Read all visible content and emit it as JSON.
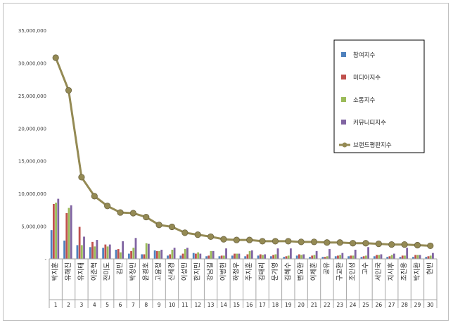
{
  "chart_data": {
    "type": "bar",
    "title": "",
    "xlabel": "",
    "ylabel": "",
    "ylim": [
      0,
      35000000
    ],
    "yticks": [
      0,
      5000000,
      10000000,
      15000000,
      20000000,
      25000000,
      30000000,
      35000000
    ],
    "ytick_labels": [
      "-",
      "5,000,000",
      "10,000,000",
      "15,000,000",
      "20,000,000",
      "25,000,000",
      "30,000,000",
      "35,000,000"
    ],
    "grid": false,
    "legend_position": "top-right",
    "categories": [
      "박지훈",
      "유해진",
      "유지태",
      "이준혁",
      "전미도",
      "김민",
      "박정민",
      "윤경호",
      "고윤정",
      "신세경",
      "이성민",
      "한지민",
      "강남길",
      "이병헌",
      "하정우",
      "주지훈",
      "김태리",
      "문가영",
      "김혜수",
      "변요한",
      "이제훈",
      "공유",
      "구교환",
      "조인성",
      "고수",
      "서인국",
      "지시후",
      "조진웅",
      "박지환",
      "현빈"
    ],
    "ranks": [
      "1",
      "2",
      "3",
      "4",
      "5",
      "6",
      "7",
      "8",
      "9",
      "10",
      "11",
      "12",
      "13",
      "14",
      "15",
      "16",
      "17",
      "18",
      "19",
      "20",
      "21",
      "22",
      "23",
      "24",
      "25",
      "26",
      "27",
      "28",
      "29",
      "30"
    ],
    "series": [
      {
        "name": "참여지수",
        "kind": "bar",
        "color": "#4f81bd",
        "values": [
          4400000,
          2800000,
          2100000,
          1800000,
          1700000,
          1400000,
          800000,
          700000,
          1300000,
          500000,
          500000,
          900000,
          400000,
          400000,
          500000,
          400000,
          500000,
          400000,
          300000,
          500000,
          300000,
          300000,
          400000,
          400000,
          300000,
          400000,
          300000,
          300000,
          300000,
          300000
        ]
      },
      {
        "name": "미디어지수",
        "kind": "bar",
        "color": "#c0504d",
        "values": [
          8400000,
          7000000,
          4900000,
          2600000,
          2200000,
          1500000,
          1200000,
          700000,
          1200000,
          700000,
          800000,
          800000,
          500000,
          500000,
          800000,
          700000,
          700000,
          600000,
          400000,
          700000,
          500000,
          300000,
          500000,
          500000,
          400000,
          600000,
          400000,
          500000,
          600000,
          400000
        ]
      },
      {
        "name": "소통지수",
        "kind": "bar",
        "color": "#9bbb59",
        "values": [
          8600000,
          7800000,
          2100000,
          1900000,
          1900000,
          1000000,
          1700000,
          2400000,
          1200000,
          1400000,
          1500000,
          1000000,
          1200000,
          500000,
          800000,
          1200000,
          600000,
          700000,
          500000,
          600000,
          600000,
          400000,
          600000,
          500000,
          500000,
          600000,
          600000,
          500000,
          600000,
          500000
        ]
      },
      {
        "name": "커뮤니티지수",
        "kind": "bar",
        "color": "#8064a2",
        "values": [
          9200000,
          8200000,
          3400000,
          2900000,
          2200000,
          2700000,
          3200000,
          2300000,
          1400000,
          1700000,
          1700000,
          800000,
          1200000,
          1600000,
          800000,
          1300000,
          700000,
          1600000,
          1600000,
          700000,
          1200000,
          1500000,
          900000,
          1400000,
          1800000,
          700000,
          800000,
          1700000,
          600000,
          900000
        ]
      },
      {
        "name": "브랜드평판지수",
        "kind": "line",
        "color": "#948a54",
        "values": [
          30800000,
          25800000,
          12500000,
          9600000,
          8100000,
          7100000,
          7000000,
          6400000,
          5200000,
          4900000,
          4000000,
          3700000,
          3400000,
          3000000,
          2900000,
          2900000,
          2700000,
          2700000,
          2700000,
          2600000,
          2600000,
          2500000,
          2500000,
          2400000,
          2400000,
          2300000,
          2200000,
          2200000,
          2100000,
          2000000
        ]
      }
    ]
  }
}
